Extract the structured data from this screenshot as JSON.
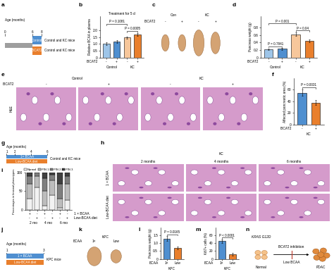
{
  "chart_data": [
    {
      "panel": "b",
      "type": "bar",
      "title": "Treatment for 5 d",
      "y_label": "Relative BCAA in plasma",
      "row_label": "iBCAT2",
      "categories": [
        "-",
        "+",
        "-",
        "+"
      ],
      "groups": [
        {
          "label": "Control",
          "members": [
            0,
            1
          ]
        },
        {
          "label": "KC",
          "members": [
            2,
            3
          ]
        }
      ],
      "values": [
        1.0,
        1.15,
        1.45,
        1.7
      ],
      "errors": [
        0.1,
        0.1,
        0.1,
        0.1
      ],
      "colors": [
        "#9ec5e8",
        "#4f8fd0",
        "#f7c79b",
        "#e97f2c"
      ],
      "ylim": [
        0,
        3
      ],
      "yticks": [
        0,
        0.5,
        1.0,
        1.5,
        2.0
      ],
      "comparisons": [
        {
          "text": "P = 0.0005",
          "between": [
            2,
            3
          ]
        },
        {
          "text": "P = 0.1081",
          "between": [
            0,
            2
          ]
        }
      ]
    },
    {
      "panel": "d",
      "type": "bar",
      "y_label": "Pancreas weight (g)",
      "row_label": "iBCAT2",
      "categories": [
        "-",
        "+",
        "-",
        "+"
      ],
      "groups": [
        {
          "label": "Control",
          "members": [
            0,
            1
          ]
        },
        {
          "label": "KC",
          "members": [
            2,
            3
          ]
        }
      ],
      "values": [
        0.22,
        0.23,
        0.62,
        0.45
      ],
      "errors": [
        0.02,
        0.02,
        0.05,
        0.04
      ],
      "colors": [
        "#9ec5e8",
        "#4f8fd0",
        "#f7c79b",
        "#e97f2c"
      ],
      "ylim": [
        0,
        1.1
      ],
      "yticks": [
        0,
        0.2,
        0.4,
        0.6,
        0.8
      ],
      "comparisons": [
        {
          "text": "P = 0.7841",
          "between": [
            0,
            1
          ]
        },
        {
          "text": "P = 0.04",
          "between": [
            2,
            3
          ]
        },
        {
          "text": "P = 0.001",
          "between": [
            0,
            2
          ]
        }
      ]
    },
    {
      "panel": "f",
      "type": "bar",
      "y_label": "Affected pancreatic area (%)",
      "row_label": "iBCAT2",
      "categories": [
        "-",
        "+"
      ],
      "groups": [
        {
          "label": "KC",
          "members": [
            0,
            1
          ]
        }
      ],
      "values": [
        55,
        38
      ],
      "errors": [
        5,
        4
      ],
      "colors": [
        "#4f8fd0",
        "#e97f2c"
      ],
      "ylim": [
        0,
        80
      ],
      "yticks": [
        0,
        20,
        40,
        60
      ],
      "comparisons": [
        {
          "text": "P = 0.0031",
          "between": [
            0,
            1
          ]
        }
      ]
    },
    {
      "panel": "i",
      "type": "bar",
      "stacked": true,
      "y_label": "Percentages in lesional phenotypes",
      "rows": [
        {
          "label": "1 × BCAA",
          "signs": [
            "+",
            "-",
            "+",
            "-",
            "+",
            "-"
          ]
        },
        {
          "label": "Low-BCAA diet",
          "signs": [
            "-",
            "+",
            "-",
            "+",
            "-",
            "+"
          ]
        }
      ],
      "groups": [
        {
          "label": "2 mo",
          "members": [
            0,
            1
          ]
        },
        {
          "label": "4 mo",
          "members": [
            2,
            3
          ]
        },
        {
          "label": "6 mo",
          "members": [
            4,
            5
          ]
        }
      ],
      "series": [
        {
          "name": "Normal",
          "color": "#f2f2f2",
          "values": [
            30,
            60,
            10,
            40,
            5,
            25
          ]
        },
        {
          "name": "PIN 1",
          "color": "#bdbdbd",
          "values": [
            40,
            30,
            40,
            40,
            25,
            45
          ]
        },
        {
          "name": "PIN 2",
          "color": "#7f7f7f",
          "values": [
            20,
            10,
            35,
            15,
            40,
            20
          ]
        },
        {
          "name": "PIN 3",
          "color": "#404040",
          "values": [
            10,
            0,
            15,
            5,
            30,
            10
          ]
        }
      ],
      "ylim": [
        0,
        100
      ],
      "yticks": [
        0,
        50,
        100
      ],
      "legend": "lower center"
    },
    {
      "panel": "l",
      "type": "bar",
      "y_label": "Pancreas weight (g)",
      "row_label": "BCAA",
      "categories": [
        "1×",
        "Low"
      ],
      "groups": [
        {
          "label": "KPC",
          "members": [
            0,
            1
          ]
        }
      ],
      "values": [
        1.3,
        0.7
      ],
      "errors": [
        0.15,
        0.1
      ],
      "colors": [
        "#4f8fd0",
        "#e97f2c"
      ],
      "ylim": [
        0,
        2
      ],
      "yticks": [
        0,
        0.5,
        1.0,
        1.5
      ],
      "comparisons": [
        {
          "text": "P = 0.0165",
          "between": [
            0,
            1
          ]
        }
      ]
    },
    {
      "panel": "m",
      "type": "bar",
      "y_label": "Ki67+ cells (%)",
      "row_label": "BCAA",
      "categories": [
        "1×",
        "Low"
      ],
      "groups": [
        {
          "label": "KPC",
          "members": [
            0,
            1
          ]
        }
      ],
      "values": [
        45,
        12
      ],
      "errors": [
        5,
        3
      ],
      "colors": [
        "#4f8fd0",
        "#e97f2c"
      ],
      "ylim": [
        0,
        80
      ],
      "yticks": [
        0,
        20,
        40,
        60
      ],
      "comparisons": [
        {
          "text": "P < 0.0001",
          "between": [
            0,
            1
          ]
        }
      ]
    }
  ],
  "timelines": [
    {
      "panel": "a",
      "axis_label": "Age (months)",
      "ticks": [
        0,
        6,
        8
      ],
      "start": 0,
      "bars": [
        {
          "label": "Control",
          "start": 6,
          "end": 8,
          "color": "#4f8fd0",
          "outcome": "Control and KC mice"
        },
        {
          "label": "iBCAT2",
          "start": 6,
          "end": 8,
          "color": "#e97f2c",
          "outcome": "Control and KC mice"
        }
      ]
    },
    {
      "panel": "g",
      "axis_label": "Age (months)",
      "ticks": [
        1,
        2,
        4,
        6
      ],
      "bars": [
        {
          "label": "1× BCAA",
          "start": 1,
          "end": 6,
          "color": "#4f8fd0"
        },
        {
          "label": "Low-BCAA diet",
          "start": 1,
          "end": 6,
          "color": "#e97f2c"
        }
      ],
      "outcome": "Control and KC mice"
    },
    {
      "panel": "j",
      "axis_label": "Age (months)",
      "ticks": [
        1,
        3
      ],
      "bars": [
        {
          "label": "1 × BCAA",
          "start": 1,
          "end": 3,
          "color": "#4f8fd0"
        },
        {
          "label": "Low-BCAA diet",
          "start": 1,
          "end": 3,
          "color": "#e97f2c"
        }
      ],
      "outcome": "KPC mice"
    }
  ],
  "specimen_images": [
    {
      "panel": "c",
      "row_label": "iBCAT2",
      "groups": [
        {
          "label": "Con",
          "signs": [
            "-",
            "+"
          ]
        },
        {
          "label": "KC",
          "signs": [
            "-",
            "+"
          ]
        }
      ]
    },
    {
      "panel": "k",
      "row_label": "BCAA",
      "groups": [
        {
          "label": "KPC",
          "signs": [
            "1×",
            "Low"
          ]
        }
      ]
    }
  ],
  "histology_images": [
    {
      "panel": "e",
      "stain": "H&E",
      "row_label": "iBCAT2",
      "groups": [
        {
          "label": "Control",
          "signs": [
            "-",
            "+"
          ]
        },
        {
          "label": "KC",
          "signs": [
            "-",
            "+"
          ]
        }
      ]
    },
    {
      "panel": "h",
      "title": "KC",
      "columns": [
        "2 months",
        "4 months",
        "6 months"
      ],
      "rows": [
        "1 × BCAA",
        "Low-BCAA diet"
      ]
    }
  ],
  "diagram": {
    "panel": "n",
    "mutation": "KRAS G12D",
    "start": "Normal",
    "end": "PDAC",
    "inhibitors": [
      "BCAT2 inhibition",
      "Low BCAA"
    ]
  }
}
